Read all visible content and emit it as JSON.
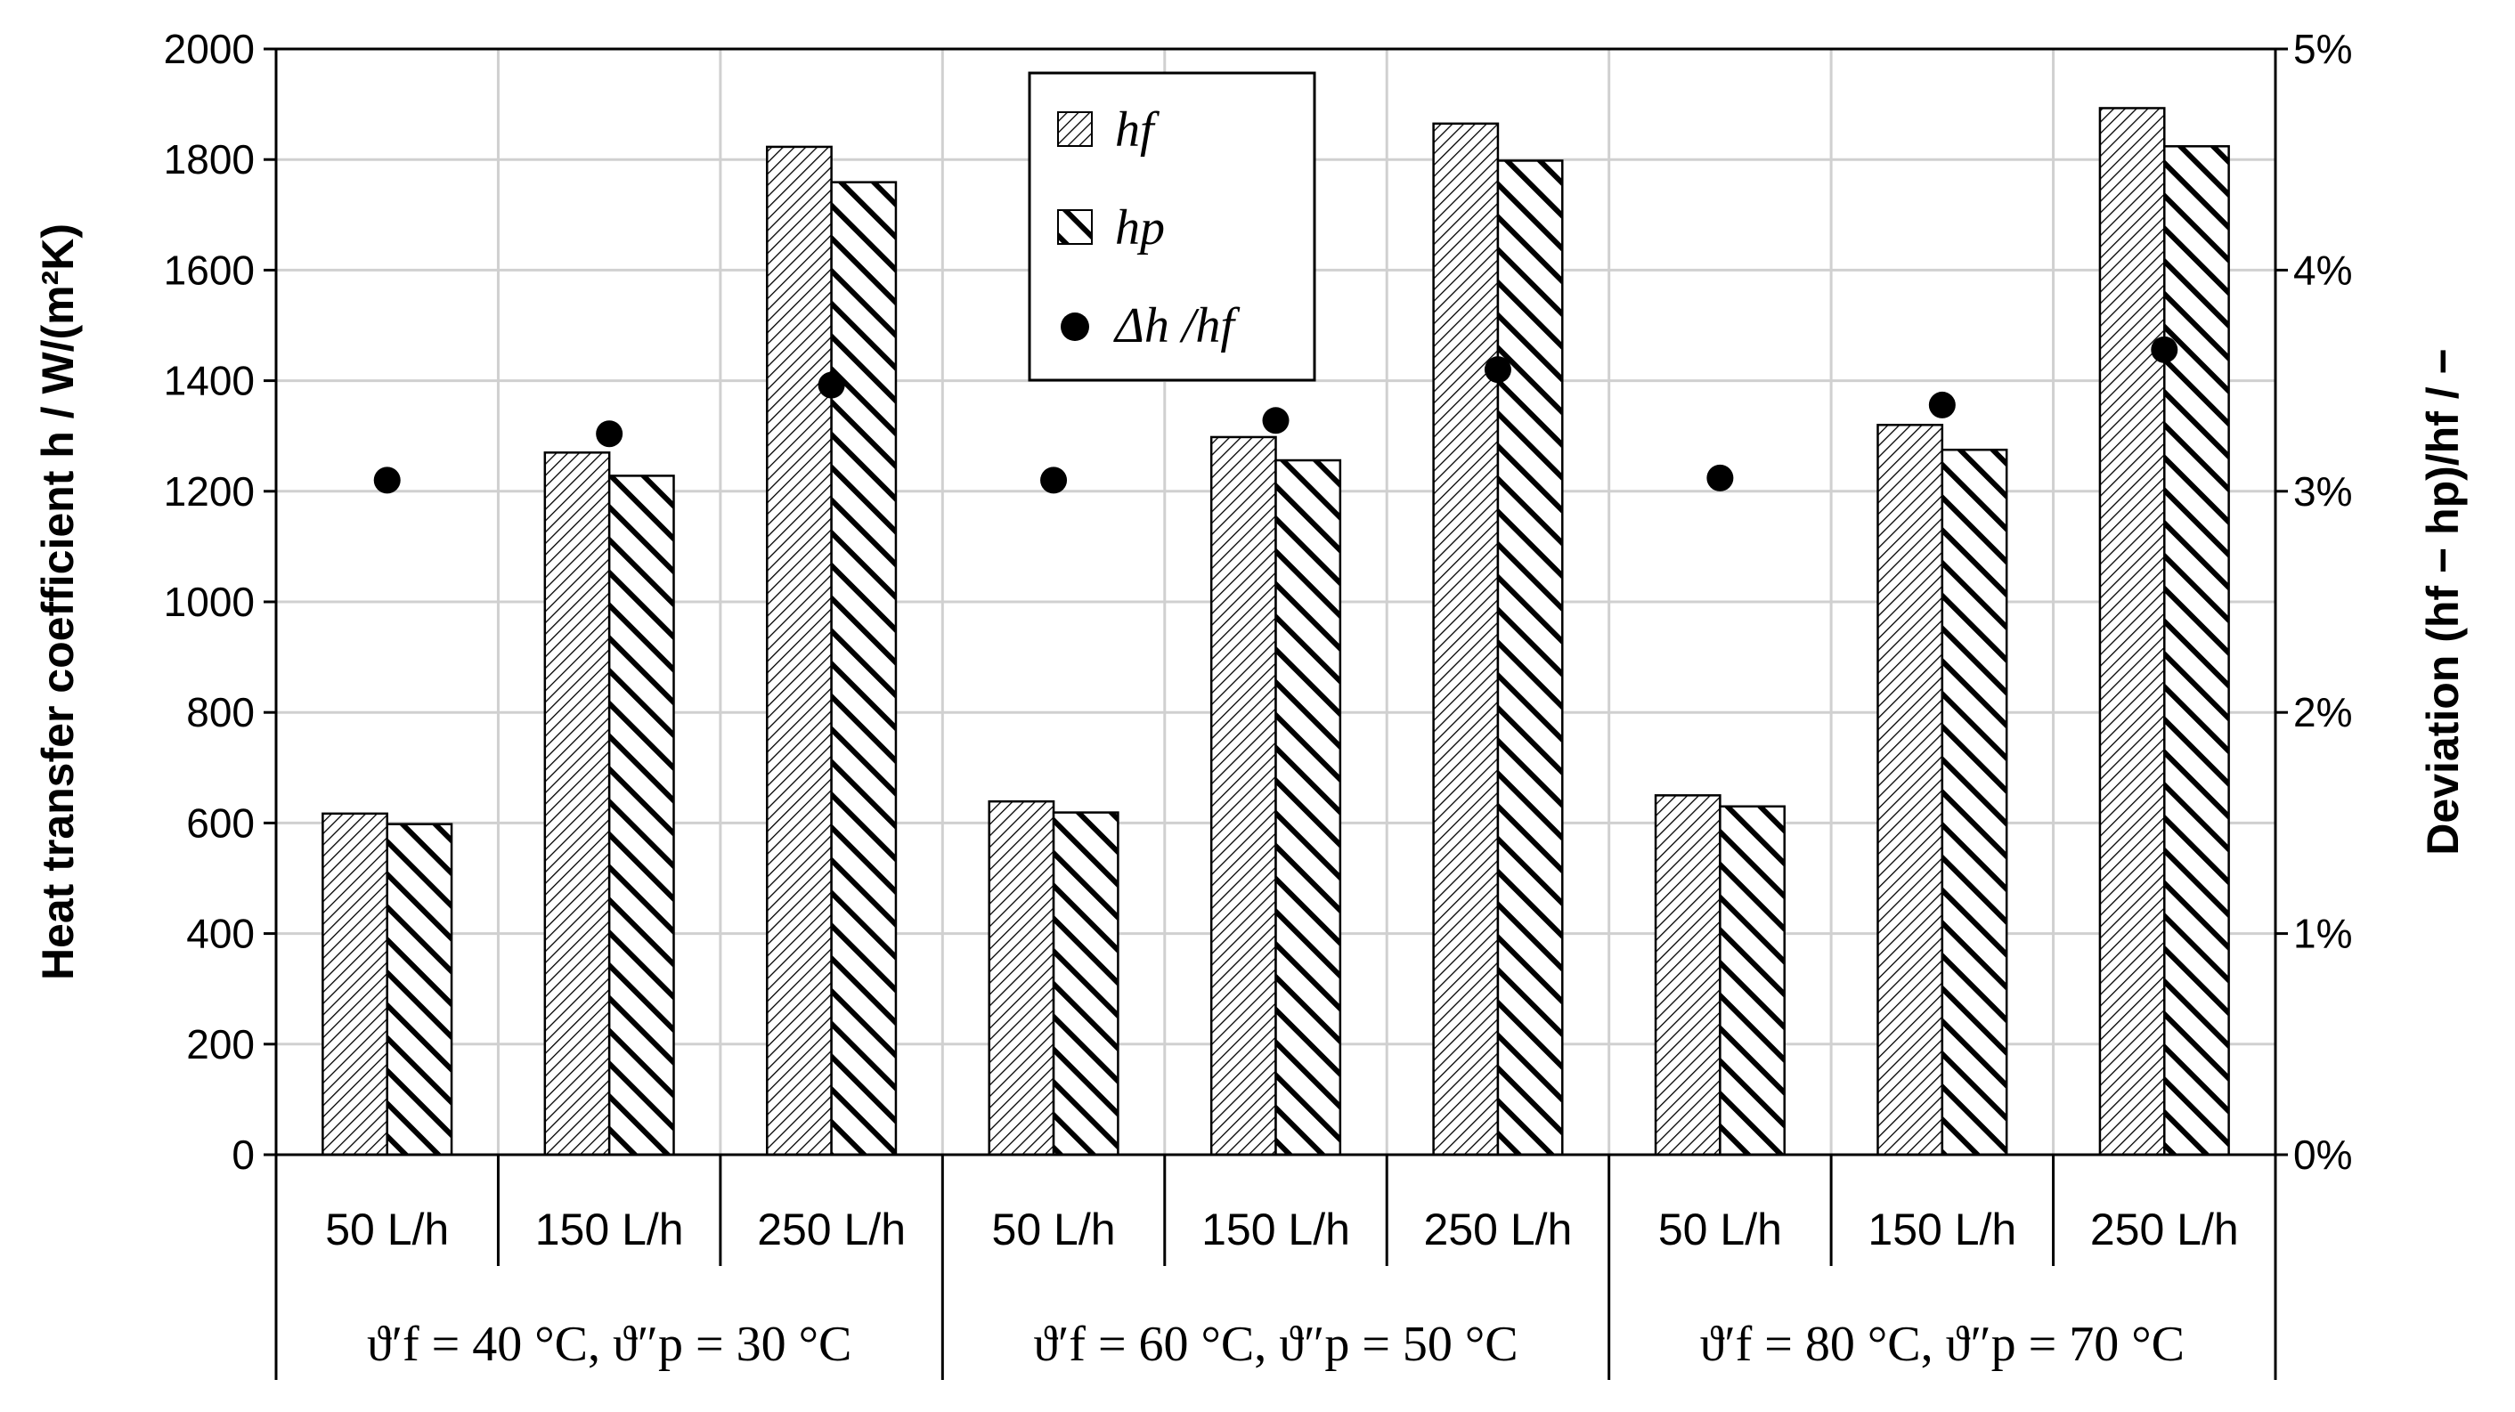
{
  "chart_data": {
    "type": "bar",
    "title": "",
    "ylabel": "Heat transfer coefficient  h / W/(m²K)",
    "y2label": "Deviation (hf − hp)/hf / −",
    "ylim": [
      0,
      2000
    ],
    "yticks": [
      0,
      200,
      400,
      600,
      800,
      1000,
      1200,
      1400,
      1600,
      1800,
      2000
    ],
    "y2lim": [
      0,
      5
    ],
    "y2ticks": [
      "0%",
      "1%",
      "2%",
      "3%",
      "4%",
      "5%"
    ],
    "grid": true,
    "legend_position": "top-center",
    "categories": [
      "50 L/h",
      "150 L/h",
      "250 L/h",
      "50 L/h",
      "150 L/h",
      "250 L/h",
      "50 L/h",
      "150 L/h",
      "250 L/h"
    ],
    "groups": [
      {
        "label": "ϑ′f = 40 °C, ϑ″p = 30 °C"
      },
      {
        "label": "ϑ′f = 60 °C, ϑ″p = 50 °C"
      },
      {
        "label": "ϑ′f = 80 °C, ϑ″p = 70 °C"
      }
    ],
    "series": [
      {
        "name": "hf",
        "axis": "left",
        "style": "bar-fine-hatch",
        "values": [
          617,
          1270,
          1823,
          639,
          1298,
          1865,
          650,
          1320,
          1893
        ]
      },
      {
        "name": "hp",
        "axis": "left",
        "style": "bar-bold-hatch",
        "values": [
          598,
          1228,
          1759,
          619,
          1256,
          1798,
          630,
          1275,
          1824
        ]
      },
      {
        "name": "Δh /hf",
        "axis": "right",
        "style": "dot",
        "unit": "%",
        "values": [
          3.05,
          3.26,
          3.48,
          3.05,
          3.32,
          3.55,
          3.06,
          3.39,
          3.64
        ]
      }
    ]
  }
}
